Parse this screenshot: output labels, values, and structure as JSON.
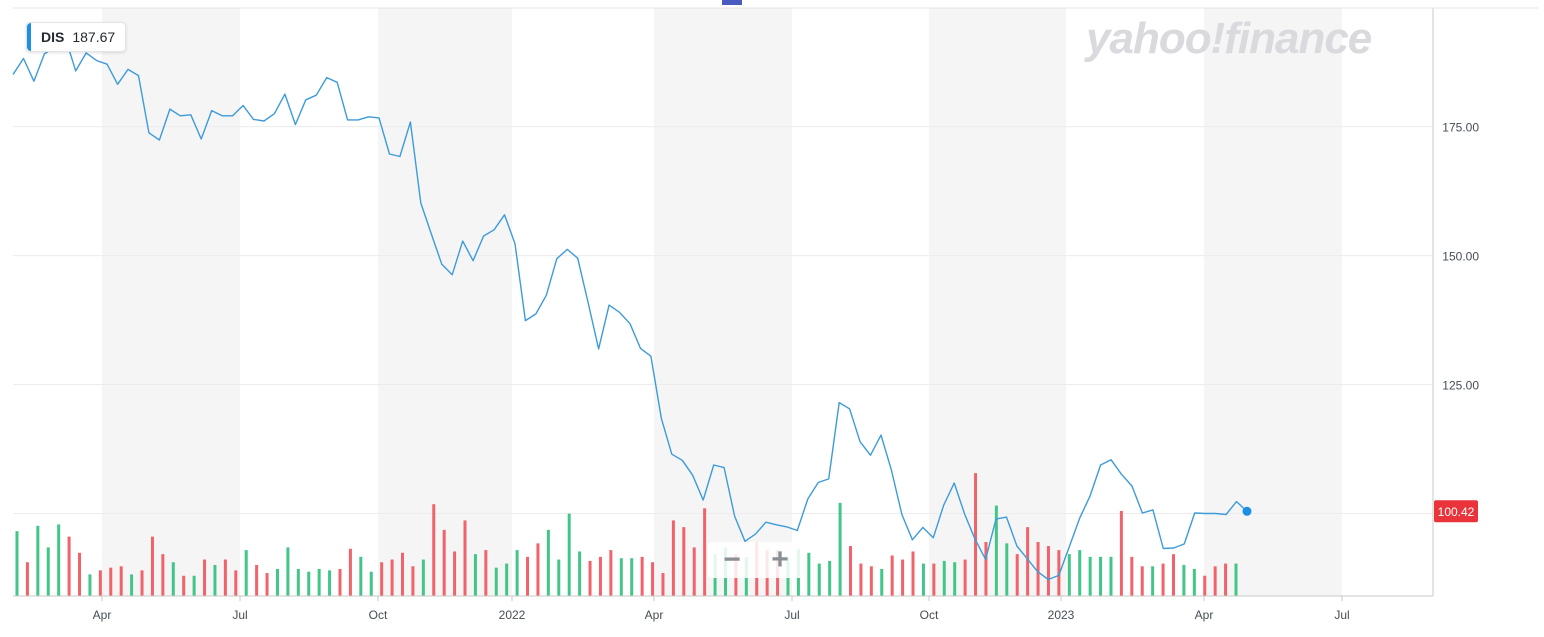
{
  "ticker": {
    "symbol": "DIS",
    "price": "187.67"
  },
  "watermark": "yahoo!finance",
  "zoom": {
    "minus_label": "−",
    "plus_label": "+"
  },
  "colors": {
    "line": "#3d9bd9",
    "up": "#42c688",
    "down": "#f0636a",
    "band": "#f5f5f5",
    "grid": "#ececec",
    "price_badge": "#e8343a",
    "last_dot": "#1a8fe3"
  },
  "chart_data": {
    "type": "line",
    "x_tick_labels": [
      "Apr",
      "Jul",
      "Oct",
      "2022",
      "Apr",
      "Jul",
      "Oct",
      "2023",
      "Apr",
      "Jul"
    ],
    "y_tick_labels": [
      "175.00",
      "150.00",
      "125.00"
    ],
    "ylim": [
      84,
      198
    ],
    "grid": true,
    "series": [
      {
        "values": [
          185.1,
          188.2,
          183.8,
          189.1,
          190.4,
          192.3,
          185.8,
          189.3,
          187.8,
          187.1,
          183.2,
          186.1,
          184.9,
          173.8,
          172.4,
          178.4,
          177.1,
          177.3,
          172.6,
          178.1,
          177.1,
          177.1,
          179.1,
          176.4,
          176.1,
          177.5,
          181.3,
          175.4,
          180.2,
          181.1,
          184.5,
          183.6,
          176.3,
          176.3,
          176.9,
          176.7,
          169.7,
          169.2,
          175.9,
          160.2,
          154.2,
          148.3,
          146.3,
          152.8,
          149.0,
          153.8,
          155.0,
          157.9,
          152.3,
          137.4,
          138.7,
          142.3,
          149.4,
          151.2,
          149.5,
          140.8,
          131.9,
          140.4,
          139.0,
          136.8,
          132.0,
          130.5,
          118.4,
          111.5,
          110.3,
          107.4,
          102.6,
          109.4,
          108.9,
          99.5,
          94.6,
          96.0,
          98.3,
          97.8,
          97.4,
          96.7,
          102.8,
          106.0,
          106.7,
          121.5,
          120.3,
          113.9,
          111.3,
          115.2,
          108.4,
          99.8,
          94.9,
          97.3,
          95.3,
          101.6,
          105.9,
          99.9,
          95.0,
          91.1,
          98.9,
          99.3,
          93.7,
          91.2,
          88.7,
          87.2,
          88.0,
          93.5,
          99.1,
          103.4,
          109.4,
          110.4,
          107.6,
          105.3,
          100.1,
          100.7,
          93.2,
          93.3,
          94.1,
          100.1,
          100.0,
          100.0,
          99.8,
          102.3,
          100.42
        ]
      }
    ],
    "last_value_label": "100.42",
    "volume_bars": [
      {
        "h": 0.48,
        "up": true
      },
      {
        "h": 0.25,
        "up": false
      },
      {
        "h": 0.52,
        "up": true
      },
      {
        "h": 0.36,
        "up": true
      },
      {
        "h": 0.53,
        "up": true
      },
      {
        "h": 0.44,
        "up": false
      },
      {
        "h": 0.32,
        "up": false
      },
      {
        "h": 0.16,
        "up": true
      },
      {
        "h": 0.19,
        "up": false
      },
      {
        "h": 0.21,
        "up": false
      },
      {
        "h": 0.22,
        "up": false
      },
      {
        "h": 0.16,
        "up": true
      },
      {
        "h": 0.19,
        "up": false
      },
      {
        "h": 0.44,
        "up": false
      },
      {
        "h": 0.31,
        "up": false
      },
      {
        "h": 0.25,
        "up": true
      },
      {
        "h": 0.15,
        "up": false
      },
      {
        "h": 0.15,
        "up": true
      },
      {
        "h": 0.27,
        "up": false
      },
      {
        "h": 0.23,
        "up": true
      },
      {
        "h": 0.27,
        "up": false
      },
      {
        "h": 0.19,
        "up": false
      },
      {
        "h": 0.34,
        "up": true
      },
      {
        "h": 0.23,
        "up": false
      },
      {
        "h": 0.17,
        "up": false
      },
      {
        "h": 0.2,
        "up": true
      },
      {
        "h": 0.36,
        "up": true
      },
      {
        "h": 0.2,
        "up": true
      },
      {
        "h": 0.18,
        "up": true
      },
      {
        "h": 0.2,
        "up": true
      },
      {
        "h": 0.19,
        "up": true
      },
      {
        "h": 0.2,
        "up": false
      },
      {
        "h": 0.35,
        "up": false
      },
      {
        "h": 0.29,
        "up": true
      },
      {
        "h": 0.18,
        "up": true
      },
      {
        "h": 0.25,
        "up": false
      },
      {
        "h": 0.27,
        "up": false
      },
      {
        "h": 0.32,
        "up": false
      },
      {
        "h": 0.22,
        "up": false
      },
      {
        "h": 0.27,
        "up": true
      },
      {
        "h": 0.68,
        "up": false
      },
      {
        "h": 0.49,
        "up": false
      },
      {
        "h": 0.33,
        "up": false
      },
      {
        "h": 0.56,
        "up": false
      },
      {
        "h": 0.31,
        "up": true
      },
      {
        "h": 0.34,
        "up": false
      },
      {
        "h": 0.21,
        "up": true
      },
      {
        "h": 0.24,
        "up": true
      },
      {
        "h": 0.34,
        "up": true
      },
      {
        "h": 0.29,
        "up": false
      },
      {
        "h": 0.39,
        "up": false
      },
      {
        "h": 0.49,
        "up": true
      },
      {
        "h": 0.27,
        "up": true
      },
      {
        "h": 0.61,
        "up": true
      },
      {
        "h": 0.33,
        "up": true
      },
      {
        "h": 0.26,
        "up": false
      },
      {
        "h": 0.29,
        "up": false
      },
      {
        "h": 0.34,
        "up": false
      },
      {
        "h": 0.28,
        "up": true
      },
      {
        "h": 0.28,
        "up": true
      },
      {
        "h": 0.29,
        "up": false
      },
      {
        "h": 0.25,
        "up": false
      },
      {
        "h": 0.17,
        "up": false
      },
      {
        "h": 0.56,
        "up": false
      },
      {
        "h": 0.51,
        "up": false
      },
      {
        "h": 0.36,
        "up": false
      },
      {
        "h": 0.65,
        "up": false
      },
      {
        "h": 0.31,
        "up": true
      },
      {
        "h": 0.36,
        "up": true
      },
      {
        "h": 0.31,
        "up": false
      },
      {
        "h": 0.29,
        "up": true
      },
      {
        "h": 0.4,
        "up": false
      },
      {
        "h": 0.34,
        "up": false
      },
      {
        "h": 0.34,
        "up": false
      },
      {
        "h": 0.28,
        "up": true
      },
      {
        "h": 0.35,
        "up": true
      },
      {
        "h": 0.32,
        "up": true
      },
      {
        "h": 0.24,
        "up": true
      },
      {
        "h": 0.26,
        "up": true
      },
      {
        "h": 0.69,
        "up": true
      },
      {
        "h": 0.37,
        "up": false
      },
      {
        "h": 0.24,
        "up": false
      },
      {
        "h": 0.22,
        "up": false
      },
      {
        "h": 0.2,
        "up": true
      },
      {
        "h": 0.3,
        "up": false
      },
      {
        "h": 0.27,
        "up": false
      },
      {
        "h": 0.33,
        "up": false
      },
      {
        "h": 0.24,
        "up": true
      },
      {
        "h": 0.24,
        "up": false
      },
      {
        "h": 0.26,
        "up": true
      },
      {
        "h": 0.25,
        "up": true
      },
      {
        "h": 0.27,
        "up": false
      },
      {
        "h": 0.91,
        "up": false
      },
      {
        "h": 0.4,
        "up": false
      },
      {
        "h": 0.67,
        "up": true
      },
      {
        "h": 0.39,
        "up": true
      },
      {
        "h": 0.31,
        "up": false
      },
      {
        "h": 0.51,
        "up": false
      },
      {
        "h": 0.4,
        "up": false
      },
      {
        "h": 0.37,
        "up": false
      },
      {
        "h": 0.34,
        "up": false
      },
      {
        "h": 0.31,
        "up": true
      },
      {
        "h": 0.34,
        "up": true
      },
      {
        "h": 0.29,
        "up": true
      },
      {
        "h": 0.29,
        "up": true
      },
      {
        "h": 0.29,
        "up": true
      },
      {
        "h": 0.63,
        "up": false
      },
      {
        "h": 0.29,
        "up": false
      },
      {
        "h": 0.22,
        "up": false
      },
      {
        "h": 0.22,
        "up": true
      },
      {
        "h": 0.24,
        "up": false
      },
      {
        "h": 0.31,
        "up": false
      },
      {
        "h": 0.23,
        "up": true
      },
      {
        "h": 0.2,
        "up": true
      },
      {
        "h": 0.15,
        "up": false
      },
      {
        "h": 0.22,
        "up": false
      },
      {
        "h": 0.24,
        "up": false
      },
      {
        "h": 0.24,
        "up": true
      }
    ]
  }
}
